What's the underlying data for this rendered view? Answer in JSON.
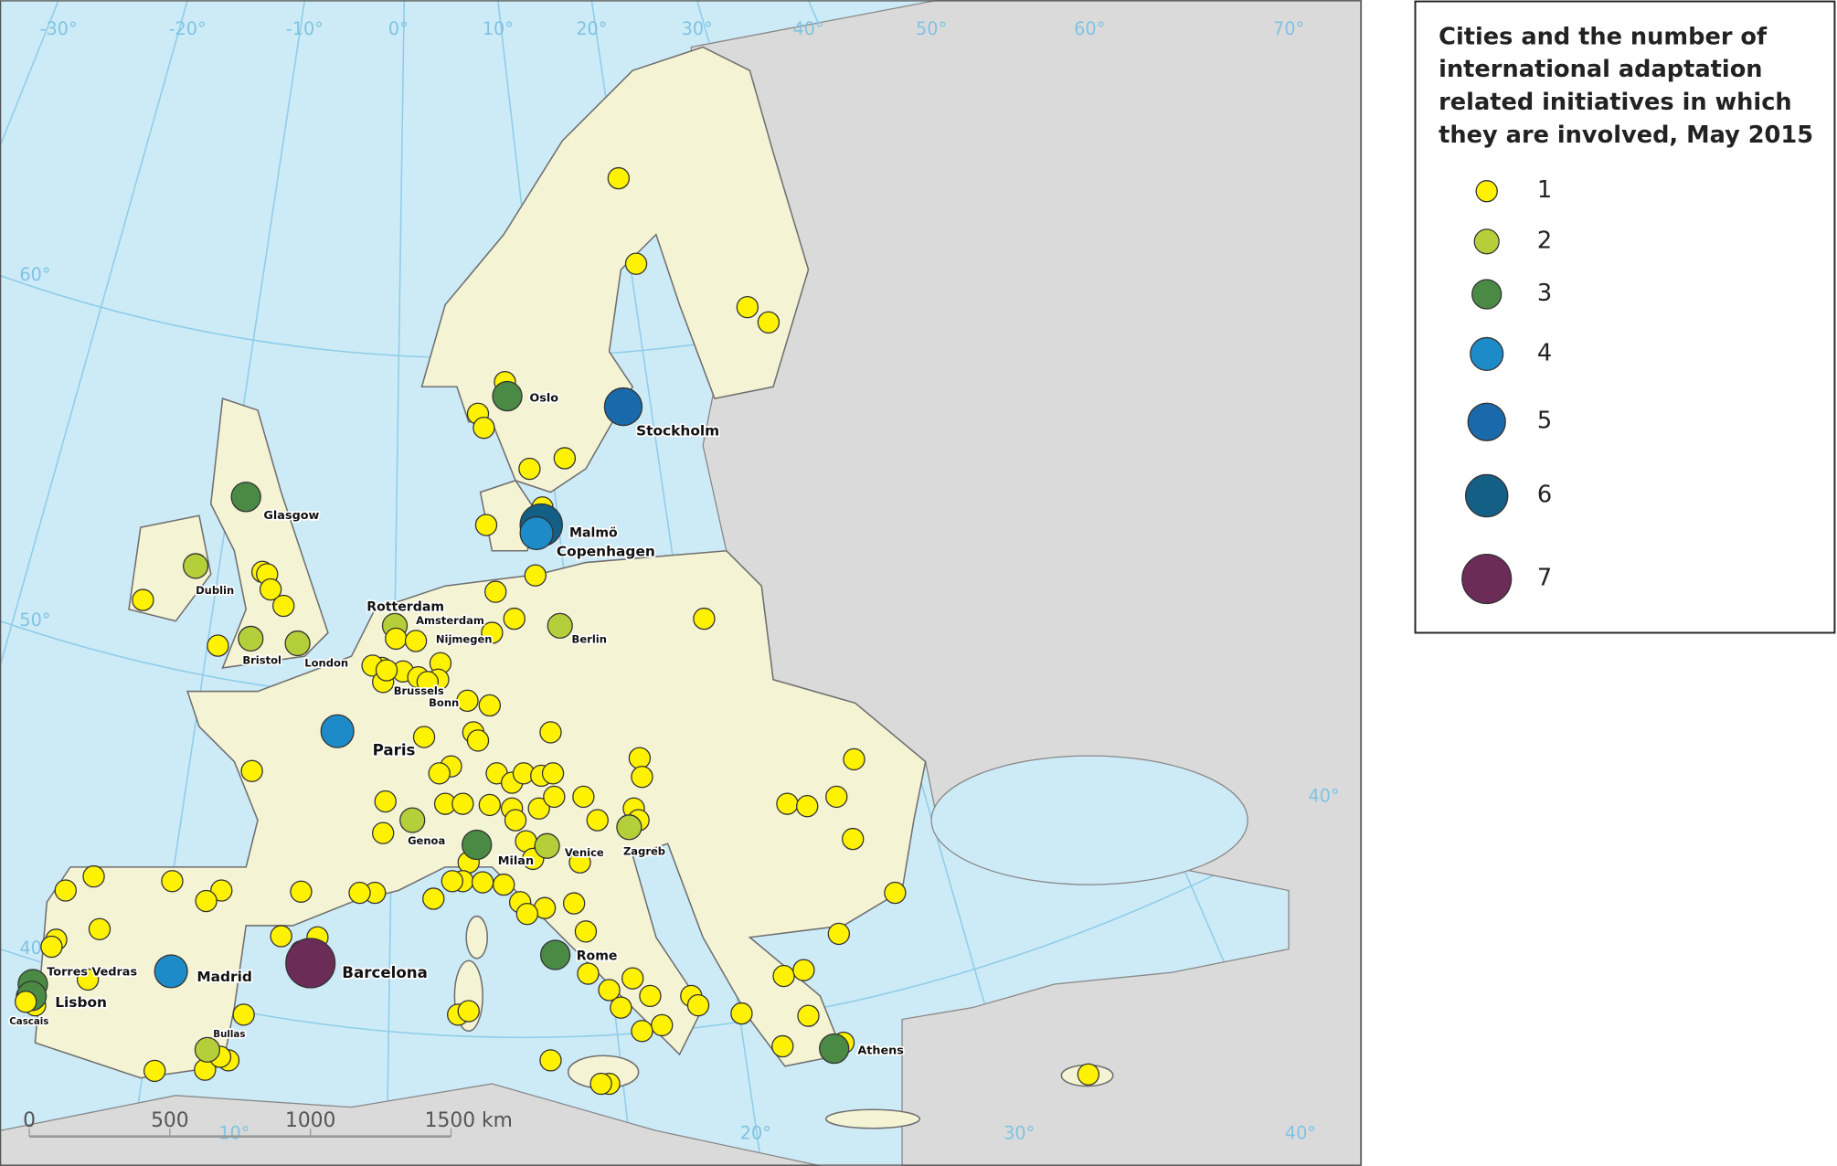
{
  "legend": {
    "title": [
      "Cities and the number of",
      "international adaptation",
      "related initiatives in which",
      "they are involved, May 2015"
    ],
    "items": [
      {
        "count": 1,
        "color": "#fff200"
      },
      {
        "count": 2,
        "color": "#b5cf3a"
      },
      {
        "count": 3,
        "color": "#4a8a45"
      },
      {
        "count": 4,
        "color": "#1c8bc8"
      },
      {
        "count": 5,
        "color": "#1a6aab"
      },
      {
        "count": 6,
        "color": "#135f86"
      },
      {
        "count": 7,
        "color": "#6b2c57"
      }
    ]
  },
  "cities": [
    {
      "label": "Oslo",
      "count": 3
    },
    {
      "label": "Stockholm",
      "count": 5
    },
    {
      "label": "Glasgow",
      "count": 3
    },
    {
      "label": "Malmö",
      "count": 6
    },
    {
      "label": "Copenhagen",
      "count": 4
    },
    {
      "label": "Dublin",
      "count": 2
    },
    {
      "label": "Rotterdam",
      "count": 2
    },
    {
      "label": "Amsterdam",
      "count": 1
    },
    {
      "label": "Nijmegen",
      "count": 1
    },
    {
      "label": "Berlin",
      "count": 2
    },
    {
      "label": "Bristol",
      "count": 2
    },
    {
      "label": "London",
      "count": 2
    },
    {
      "label": "Brussels",
      "count": 1
    },
    {
      "label": "Bonn",
      "count": 1
    },
    {
      "label": "Paris",
      "count": 4
    },
    {
      "label": "Genoa",
      "count": 2
    },
    {
      "label": "Milan",
      "count": 3
    },
    {
      "label": "Venice",
      "count": 2
    },
    {
      "label": "Zagreb",
      "count": 2
    },
    {
      "label": "Rome",
      "count": 3
    },
    {
      "label": "Barcelona",
      "count": 7
    },
    {
      "label": "Madrid",
      "count": 4
    },
    {
      "label": "Torres Vedras",
      "count": 3
    },
    {
      "label": "Lisbon",
      "count": 3
    },
    {
      "label": "Cascais",
      "count": 1
    },
    {
      "label": "Bullas",
      "count": 2
    },
    {
      "label": "Athens",
      "count": 3
    }
  ],
  "graticule": [
    "-30°",
    "-20°",
    "-10°",
    "0°",
    "10°",
    "20°",
    "30°",
    "40°",
    "50°",
    "60°",
    "70°",
    "60°",
    "50°",
    "40°",
    "10°",
    "20°",
    "30°",
    "40°",
    "40°"
  ],
  "scale_bar": [
    0,
    500,
    1000,
    "1500 km"
  ]
}
